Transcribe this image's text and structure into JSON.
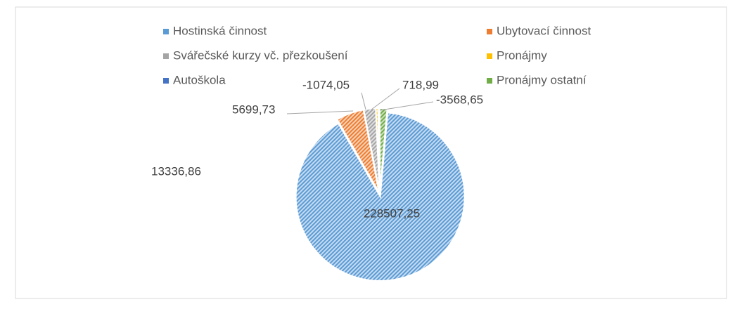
{
  "chart_data": {
    "type": "pie",
    "categories": [
      "Hostinská činnost",
      "Ubytovací činnost",
      "Svářečské kurzy vč. přezkoušení",
      "Pronájmy",
      "Autoškola",
      "Pronájmy ostatní"
    ],
    "values": [
      228507.25,
      13336.86,
      5699.73,
      -1074.05,
      718.99,
      -3568.65
    ],
    "value_labels": [
      "228507,25",
      "13336,86",
      "5699,73",
      "-1074,05",
      "718,99",
      "-3568,65"
    ],
    "colors": [
      "#5b9bd5",
      "#ed7d31",
      "#a5a5a5",
      "#ffc000",
      "#4472c4",
      "#70ad47"
    ],
    "legend": "top"
  }
}
